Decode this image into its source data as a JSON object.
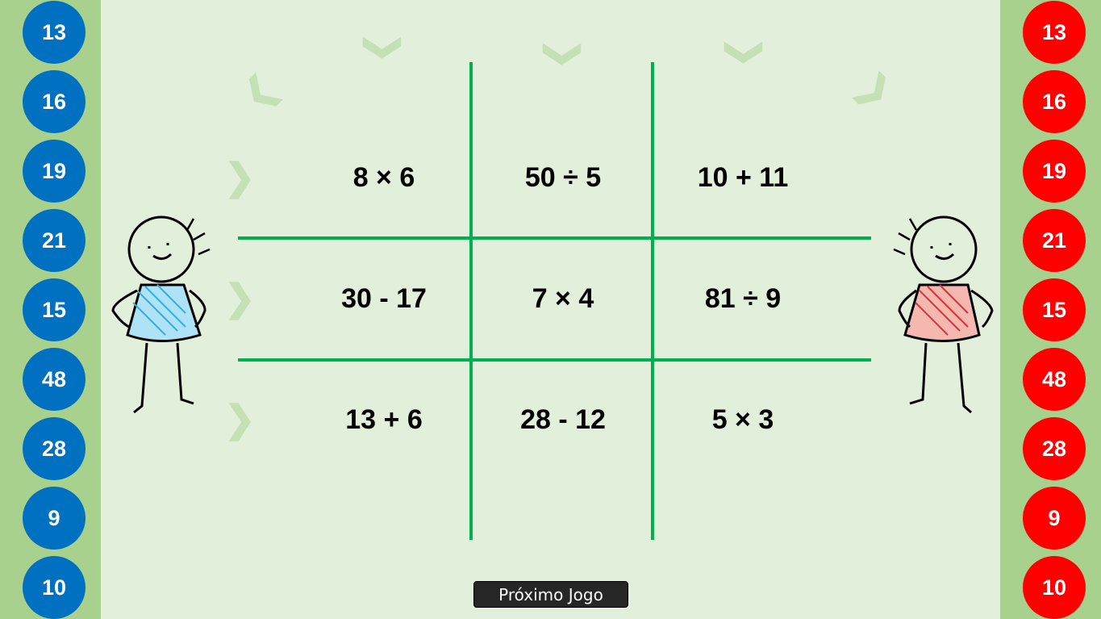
{
  "players": {
    "blue": {
      "color": "#0070c0",
      "numbers": [
        "13",
        "16",
        "19",
        "21",
        "15",
        "48",
        "28",
        "9",
        "10"
      ]
    },
    "red": {
      "color": "#ff0000",
      "numbers": [
        "13",
        "16",
        "19",
        "21",
        "15",
        "48",
        "28",
        "9",
        "10"
      ]
    }
  },
  "board": {
    "line_color": "#00b050",
    "cells": [
      [
        "8 × 6",
        "50 ÷ 5",
        "10 + 11"
      ],
      [
        "30 - 17",
        "7 × 4",
        "81 ÷ 9"
      ],
      [
        "13 + 6",
        "28 - 12",
        "5 × 3"
      ]
    ]
  },
  "next_button": {
    "label": "Próximo Jogo"
  }
}
